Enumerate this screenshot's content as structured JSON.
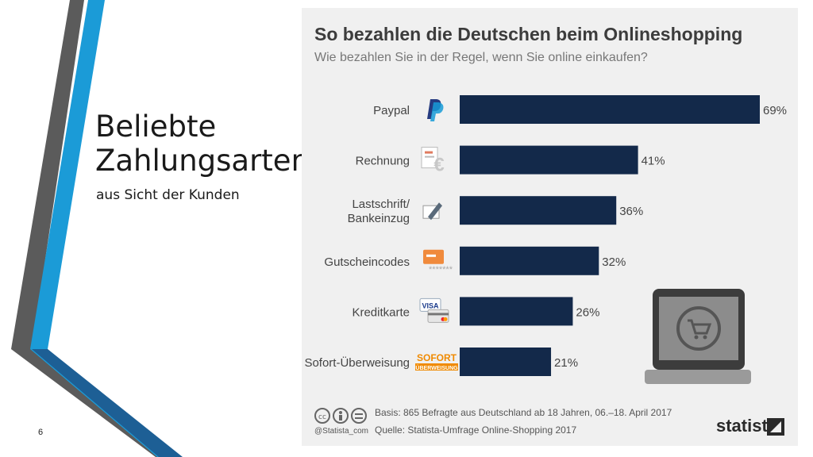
{
  "slide": {
    "title_line1": "Beliebte",
    "title_line2": "Zahlungsarten",
    "subtitle": "aus Sicht der Kunden",
    "page_number": "6"
  },
  "infographic": {
    "basis": "Basis: 865 Befragte aus Deutschland ab 18 Jahren, 06.–18. April 2017",
    "source": "Quelle: Statista-Umfrage Online-Shopping 2017",
    "handle": "@Statista_com",
    "brand": "statista"
  },
  "chart_data": {
    "type": "bar",
    "orientation": "horizontal",
    "title": "So bezahlen die Deutschen beim Onlineshopping",
    "subtitle": "Wie bezahlen Sie in der Regel, wenn Sie online einkaufen?",
    "categories": [
      "Paypal",
      "Rechnung",
      "Lastschrift/\nBankeinzug",
      "Gutscheincodes",
      "Kreditkarte",
      "Sofort-Überweisung"
    ],
    "values": [
      69,
      41,
      36,
      32,
      26,
      21
    ],
    "value_labels": [
      "69%",
      "41%",
      "36%",
      "32%",
      "26%",
      "21%"
    ],
    "unit": "%",
    "xlim": [
      0,
      69
    ],
    "grid": false,
    "legend": "none",
    "bar_color": "#13294a",
    "icons": [
      "paypal-icon",
      "invoice-euro-icon",
      "signature-pen-icon",
      "voucher-card-icon",
      "credit-card-visa-icon",
      "sofort-logo-icon"
    ],
    "icon_texts": [
      "",
      "",
      "",
      "*******",
      "VISA",
      "SOFORT"
    ]
  },
  "colors": {
    "stripe_gray": "#5b5b5b",
    "stripe_blue": "#1b9bd7",
    "stripe_navy": "#1d5f95",
    "panel_bg": "#f0f0f0",
    "bar": "#13294a"
  }
}
